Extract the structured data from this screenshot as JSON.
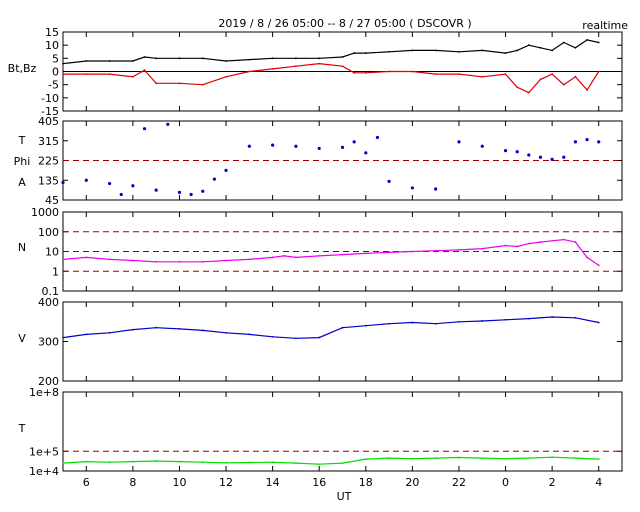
{
  "title": "2019 / 8 / 26  05:00 -- 8 / 27  05:00 ( DSCOVR )",
  "badge": "realtime",
  "x_axis": {
    "label": "UT",
    "ticks": [
      "6",
      "8",
      "10",
      "12",
      "14",
      "16",
      "18",
      "20",
      "22",
      "0",
      "2",
      "4"
    ]
  },
  "colors": {
    "bt": "#000000",
    "bz": "#dd0000",
    "phi": "#0000cc",
    "density": "#ee00ee",
    "speed": "#0000cc",
    "temperature": "#00dd00",
    "reference_line": "#990000"
  },
  "chart_data": [
    {
      "type": "line",
      "panel": "Bt,Bz",
      "ylabel": "Bt,Bz",
      "ylim": [
        -15,
        15
      ],
      "yticks": [
        "15",
        "10",
        "5",
        "0",
        "-5",
        "-10",
        "-15"
      ],
      "zero_line": 0,
      "x": [
        "05:00",
        "06:00",
        "07:00",
        "08:00",
        "08:30",
        "09:00",
        "10:00",
        "11:00",
        "12:00",
        "13:00",
        "14:00",
        "15:00",
        "16:00",
        "17:00",
        "17:30",
        "18:00",
        "19:00",
        "20:00",
        "21:00",
        "22:00",
        "23:00",
        "00:00",
        "00:30",
        "01:00",
        "01:30",
        "02:00",
        "02:30",
        "03:00",
        "03:30",
        "04:00"
      ],
      "series": [
        {
          "name": "Bt",
          "values": [
            3,
            4,
            4,
            4,
            5.5,
            5,
            5,
            5,
            4,
            4.5,
            5,
            5,
            5,
            5.5,
            7,
            7,
            7.5,
            8,
            8,
            7.5,
            8,
            7,
            8,
            10,
            9,
            8,
            11,
            9,
            12,
            11
          ]
        },
        {
          "name": "Bz",
          "values": [
            -1,
            -1,
            -1,
            -2,
            0.5,
            -4.5,
            -4.5,
            -5,
            -2,
            0,
            1,
            2,
            3,
            2,
            -0.5,
            -0.5,
            0,
            0,
            -1,
            -1,
            -2,
            -1,
            -6,
            -8,
            -3,
            -1,
            -5,
            -2,
            -7,
            0
          ]
        }
      ]
    },
    {
      "type": "scatter",
      "panel": "Phi",
      "ylabel": "T Phi A",
      "ylim": [
        45,
        405
      ],
      "yticks": [
        "405",
        "315",
        "225",
        "135",
        "45"
      ],
      "reference_lines": [
        225
      ],
      "x": [
        "05:00",
        "06:00",
        "07:00",
        "07:30",
        "08:00",
        "08:30",
        "09:00",
        "09:30",
        "10:00",
        "10:30",
        "11:00",
        "11:30",
        "12:00",
        "13:00",
        "14:00",
        "15:00",
        "16:00",
        "17:00",
        "17:30",
        "18:00",
        "18:30",
        "19:00",
        "20:00",
        "21:00",
        "22:00",
        "23:00",
        "00:00",
        "00:30",
        "01:00",
        "01:30",
        "02:00",
        "02:30",
        "03:00",
        "03:30",
        "04:00"
      ],
      "series": [
        {
          "name": "Phi",
          "values": [
            125,
            135,
            120,
            70,
            110,
            370,
            90,
            390,
            80,
            70,
            85,
            140,
            180,
            290,
            295,
            290,
            280,
            285,
            310,
            260,
            330,
            130,
            100,
            95,
            310,
            290,
            270,
            265,
            250,
            240,
            230,
            240,
            310,
            320,
            310
          ]
        }
      ]
    },
    {
      "type": "line",
      "panel": "N",
      "ylabel": "N",
      "yscale": "log",
      "ylim": [
        0.1,
        1000
      ],
      "yticks": [
        "1000",
        "100",
        "10",
        "1",
        "0.1"
      ],
      "reference_lines": [
        1,
        10,
        100
      ],
      "x": [
        "05:00",
        "06:00",
        "07:00",
        "08:00",
        "09:00",
        "10:00",
        "11:00",
        "12:00",
        "13:00",
        "14:00",
        "14:30",
        "15:00",
        "16:00",
        "17:00",
        "18:00",
        "19:00",
        "20:00",
        "21:00",
        "22:00",
        "23:00",
        "00:00",
        "00:30",
        "01:00",
        "01:30",
        "02:00",
        "02:30",
        "03:00",
        "03:30",
        "04:00"
      ],
      "series": [
        {
          "name": "N",
          "values": [
            4,
            5,
            4,
            3.5,
            3,
            3,
            3,
            3.5,
            4,
            5,
            6,
            5,
            6,
            7,
            8,
            9,
            10,
            11,
            12,
            14,
            20,
            18,
            25,
            30,
            35,
            40,
            30,
            5,
            2
          ]
        }
      ]
    },
    {
      "type": "line",
      "panel": "V",
      "ylabel": "V",
      "ylim": [
        200,
        400
      ],
      "yticks": [
        "400",
        "300",
        "200"
      ],
      "x": [
        "05:00",
        "06:00",
        "07:00",
        "08:00",
        "09:00",
        "10:00",
        "11:00",
        "12:00",
        "13:00",
        "14:00",
        "15:00",
        "16:00",
        "17:00",
        "18:00",
        "19:00",
        "20:00",
        "21:00",
        "22:00",
        "23:00",
        "00:00",
        "01:00",
        "02:00",
        "03:00",
        "04:00"
      ],
      "series": [
        {
          "name": "V",
          "values": [
            310,
            318,
            322,
            330,
            335,
            332,
            328,
            322,
            318,
            312,
            308,
            310,
            335,
            340,
            345,
            348,
            345,
            350,
            352,
            355,
            358,
            362,
            360,
            348
          ]
        }
      ]
    },
    {
      "type": "line",
      "panel": "T",
      "ylabel": "T",
      "yscale": "log",
      "ylim": [
        10000,
        100000000
      ],
      "yticks": [
        "1e+8",
        "1e+5",
        "1e+4"
      ],
      "reference_lines": [
        100000
      ],
      "x": [
        "05:00",
        "06:00",
        "07:00",
        "08:00",
        "09:00",
        "10:00",
        "11:00",
        "12:00",
        "13:00",
        "14:00",
        "15:00",
        "16:00",
        "17:00",
        "18:00",
        "19:00",
        "20:00",
        "21:00",
        "22:00",
        "23:00",
        "00:00",
        "01:00",
        "02:00",
        "03:00",
        "04:00"
      ],
      "series": [
        {
          "name": "T",
          "values": [
            25000,
            30000,
            28000,
            30000,
            32000,
            30000,
            28000,
            26000,
            27000,
            28000,
            25000,
            22000,
            25000,
            40000,
            45000,
            42000,
            45000,
            48000,
            45000,
            42000,
            45000,
            50000,
            45000,
            40000
          ]
        }
      ]
    }
  ]
}
